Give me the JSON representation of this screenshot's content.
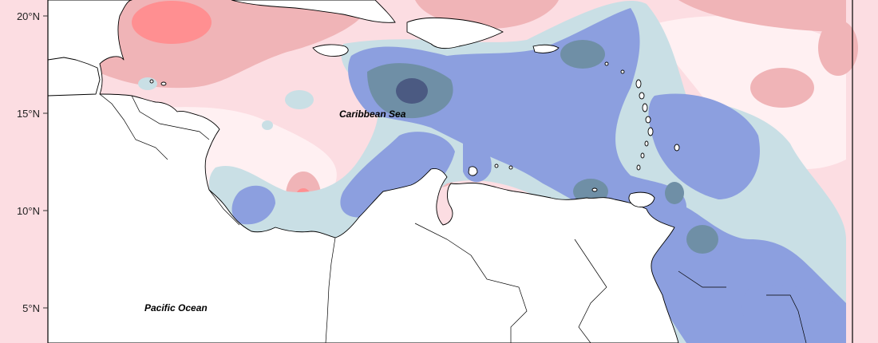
{
  "map": {
    "colors": {
      "strong_positive": "#ff8f91",
      "positive": "#f0b4b7",
      "weak_positive": "#fcdde2",
      "near_zero": "#fff0f2",
      "weak_negative": "#c9dfe5",
      "negative": "#8c9fdf",
      "strong_negative": "#6f8fa6",
      "extreme_negative": "#4b5a82",
      "land": "#ffffff",
      "coastline": "#000000"
    },
    "latitude_ticks": [
      {
        "label": "20°N"
      },
      {
        "label": "15°N"
      },
      {
        "label": "10°N"
      },
      {
        "label": "5°N"
      }
    ],
    "labels": {
      "caribbean_sea": "Caribbean Sea",
      "pacific_ocean": "Pacific Ocean"
    }
  }
}
